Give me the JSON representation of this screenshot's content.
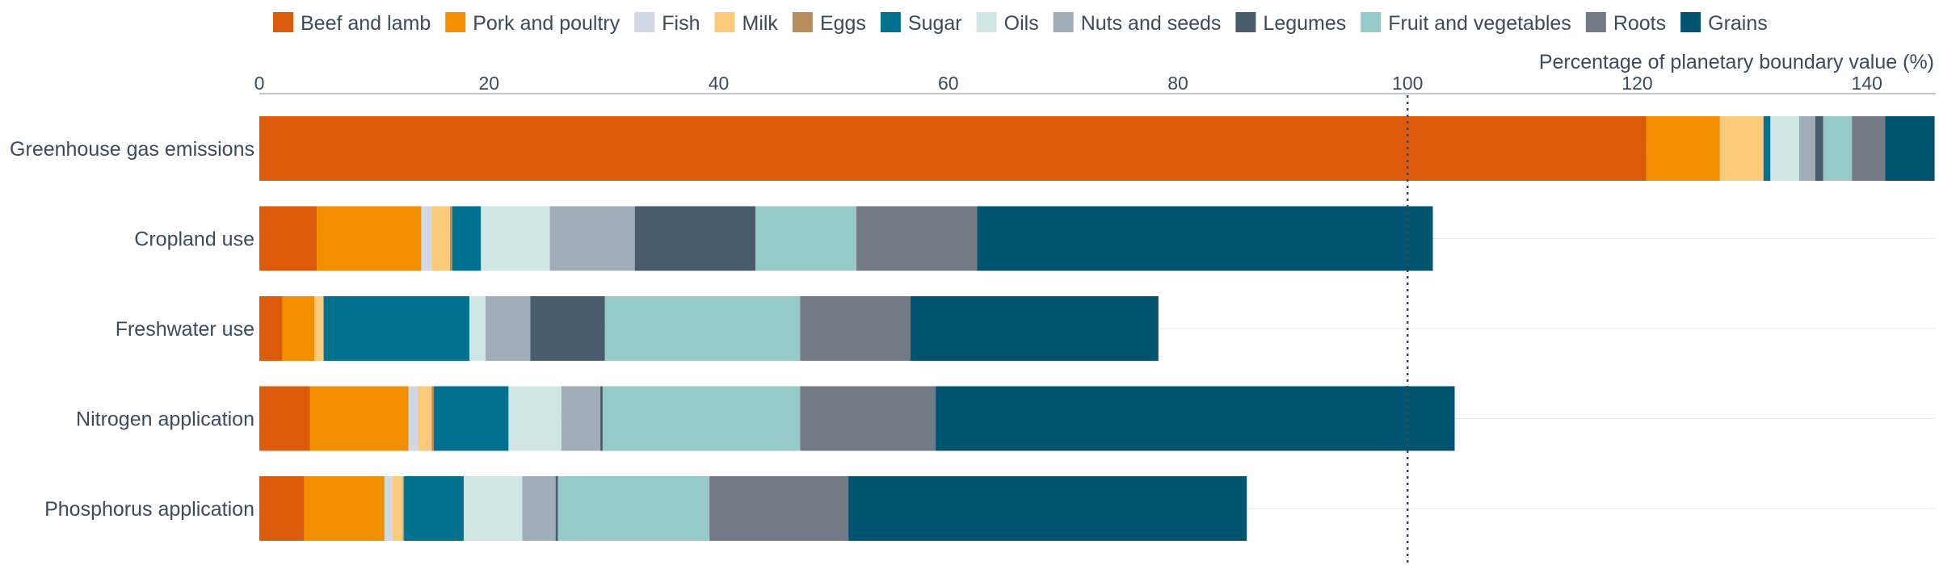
{
  "chart_data": {
    "type": "bar",
    "orientation": "horizontal",
    "stacked": true,
    "xlabel": "Percentage of planetary boundary value (%)",
    "xlim": [
      0,
      146
    ],
    "xticks": [
      "0",
      "20",
      "40",
      "60",
      "80",
      "100",
      "120",
      "140"
    ],
    "reference_line": {
      "value": 100,
      "style": "dotted"
    },
    "legend_position": "top",
    "categories": [
      "Greenhouse gas emissions",
      "Cropland use",
      "Freshwater use",
      "Nitrogen application",
      "Phosphorus application"
    ],
    "series": [
      {
        "name": "Beef and lamb",
        "color": "#dc5b0a",
        "values": [
          120.8,
          5.0,
          2.0,
          4.4,
          3.9
        ]
      },
      {
        "name": "Pork and poultry",
        "color": "#f28f00",
        "values": [
          6.4,
          9.1,
          2.8,
          8.6,
          7.0
        ]
      },
      {
        "name": "Fish",
        "color": "#cfd8e3",
        "values": [
          0.0,
          0.9,
          0.0,
          0.8,
          0.7
        ]
      },
      {
        "name": "Milk",
        "color": "#fbc97a",
        "values": [
          3.8,
          1.6,
          0.8,
          1.2,
          0.9
        ]
      },
      {
        "name": "Eggs",
        "color": "#b98d5c",
        "values": [
          0.0,
          0.2,
          0.0,
          0.2,
          0.1
        ]
      },
      {
        "name": "Sugar",
        "color": "#00728f",
        "values": [
          0.6,
          2.5,
          12.7,
          6.5,
          5.2
        ]
      },
      {
        "name": "Oils",
        "color": "#cfe6e5",
        "values": [
          2.5,
          6.0,
          1.4,
          4.6,
          5.1
        ]
      },
      {
        "name": "Nuts and seeds",
        "color": "#a0adb9",
        "values": [
          1.4,
          7.4,
          3.9,
          3.4,
          2.9
        ]
      },
      {
        "name": "Legumes",
        "color": "#485c6d",
        "values": [
          0.7,
          10.5,
          6.5,
          0.2,
          0.2
        ]
      },
      {
        "name": "Fruit and vegetables",
        "color": "#95cac9",
        "values": [
          2.5,
          8.8,
          17.0,
          17.2,
          13.2
        ]
      },
      {
        "name": "Roots",
        "color": "#727a85",
        "values": [
          2.9,
          10.5,
          9.6,
          11.8,
          12.1
        ]
      },
      {
        "name": "Grains",
        "color": "#005470",
        "values": [
          4.3,
          39.7,
          21.6,
          45.2,
          34.7
        ]
      }
    ]
  }
}
